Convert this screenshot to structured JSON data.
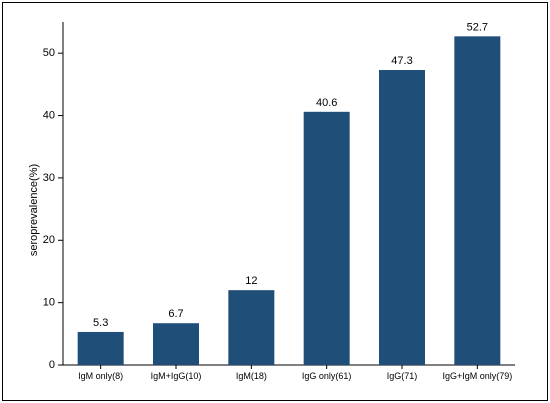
{
  "chart_data": {
    "type": "bar",
    "title": "",
    "xlabel": "",
    "ylabel": "seroprevalence(%)",
    "ylim": [
      0,
      55
    ],
    "yticks": [
      0,
      10,
      20,
      30,
      40,
      50
    ],
    "grid": false,
    "legend": "none",
    "categories": [
      "IgM only(8)",
      "IgM+IgG(10)",
      "IgM(18)",
      "IgG only(61)",
      "IgG(71)",
      "IgG+IgM only(79)"
    ],
    "values": [
      5.3,
      6.7,
      12,
      40.6,
      47.3,
      52.7
    ],
    "data_labels": [
      "5.3",
      "6.7",
      "12",
      "40.6",
      "47.3",
      "52.7"
    ],
    "bar_color": "#1f4e79"
  }
}
